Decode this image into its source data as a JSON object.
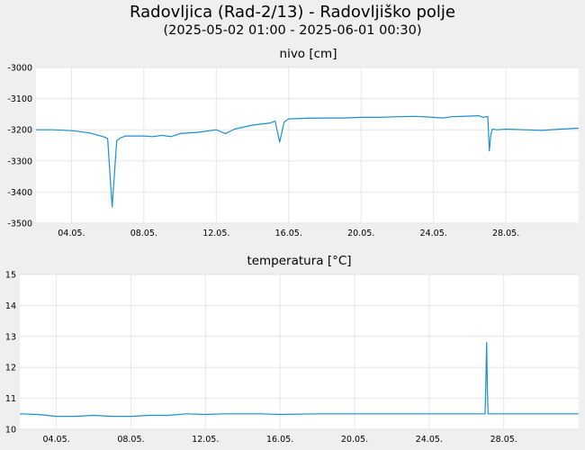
{
  "title": "Radovljica (Rad-2/13) - Radovljiško polje",
  "subtitle": "(2025-05-02 01:00 - 2025-06-01 00:30)",
  "colors": {
    "line": "#1a8fd6",
    "background": "#efefef",
    "plot_background": "#ffffff",
    "grid": "#e6e6e6"
  },
  "chart_data": [
    {
      "type": "line",
      "title": "nivo [cm]",
      "x_range": [
        "2025-05-02 01:00",
        "2025-06-01 00:30"
      ],
      "x_tick_labels": [
        "04.05.",
        "08.05.",
        "12.05.",
        "16.05.",
        "20.05.",
        "24.05.",
        "28.05."
      ],
      "ylim": [
        -3500,
        -3000
      ],
      "y_ticks": [
        -3000,
        -3100,
        -3200,
        -3300,
        -3400,
        -3500
      ],
      "grid": true,
      "series": [
        {
          "x": [
            "2025-05-02 01:00",
            "2025-05-03 00:00",
            "2025-05-04 00:00",
            "2025-05-04 12:00",
            "2025-05-05 00:00",
            "2025-05-05 12:00",
            "2025-05-05 18:00",
            "2025-05-06 00:00",
            "2025-05-06 06:00",
            "2025-05-06 12:00",
            "2025-05-06 18:00",
            "2025-05-07 00:00",
            "2025-05-08 00:00",
            "2025-05-08 12:00",
            "2025-05-09 00:00",
            "2025-05-09 12:00",
            "2025-05-10 00:00",
            "2025-05-11 00:00",
            "2025-05-12 00:00",
            "2025-05-12 12:00",
            "2025-05-13 00:00",
            "2025-05-14 00:00",
            "2025-05-15 00:00",
            "2025-05-15 06:00",
            "2025-05-15 12:00",
            "2025-05-15 18:00",
            "2025-05-16 00:00",
            "2025-05-17 00:00",
            "2025-05-18 00:00",
            "2025-05-19 00:00",
            "2025-05-20 00:00",
            "2025-05-21 00:00",
            "2025-05-22 00:00",
            "2025-05-23 00:00",
            "2025-05-24 00:00",
            "2025-05-24 12:00",
            "2025-05-25 00:00",
            "2025-05-26 00:00",
            "2025-05-26 12:00",
            "2025-05-26 18:00",
            "2025-05-27 00:00",
            "2025-05-27 02:00",
            "2025-05-27 04:00",
            "2025-05-27 06:00",
            "2025-05-27 12:00",
            "2025-05-28 00:00",
            "2025-05-29 00:00",
            "2025-05-30 00:00",
            "2025-05-31 00:00",
            "2025-06-01 00:30"
          ],
          "y": [
            -3200,
            -3200,
            -3203,
            -3206,
            -3210,
            -3218,
            -3222,
            -3228,
            -3448,
            -3235,
            -3225,
            -3220,
            -3220,
            -3222,
            -3218,
            -3222,
            -3212,
            -3208,
            -3200,
            -3212,
            -3198,
            -3185,
            -3178,
            -3172,
            -3240,
            -3175,
            -3165,
            -3163,
            -3162,
            -3162,
            -3160,
            -3160,
            -3158,
            -3157,
            -3160,
            -3162,
            -3158,
            -3156,
            -3155,
            -3160,
            -3157,
            -3268,
            -3215,
            -3198,
            -3200,
            -3198,
            -3200,
            -3202,
            -3198,
            -3195
          ]
        }
      ]
    },
    {
      "type": "line",
      "title": "temperatura [°C]",
      "x_range": [
        "2025-05-02 01:00",
        "2025-06-01 00:30"
      ],
      "x_tick_labels": [
        "04.05.",
        "08.05.",
        "12.05.",
        "16.05.",
        "20.05.",
        "24.05.",
        "28.05."
      ],
      "ylim": [
        10,
        15
      ],
      "y_ticks": [
        15,
        14,
        13,
        12,
        11,
        10
      ],
      "grid": true,
      "series": [
        {
          "x": [
            "2025-05-02 01:00",
            "2025-05-03 00:00",
            "2025-05-03 12:00",
            "2025-05-04 00:00",
            "2025-05-05 00:00",
            "2025-05-06 00:00",
            "2025-05-07 00:00",
            "2025-05-08 00:00",
            "2025-05-09 00:00",
            "2025-05-10 00:00",
            "2025-05-11 00:00",
            "2025-05-12 00:00",
            "2025-05-13 00:00",
            "2025-05-14 00:00",
            "2025-05-15 00:00",
            "2025-05-16 00:00",
            "2025-05-18 00:00",
            "2025-05-20 00:00",
            "2025-05-22 00:00",
            "2025-05-24 00:00",
            "2025-05-26 00:00",
            "2025-05-27 00:00",
            "2025-05-27 01:00",
            "2025-05-27 02:00",
            "2025-05-27 03:00",
            "2025-05-27 04:00",
            "2025-05-27 06:00",
            "2025-05-28 00:00",
            "2025-05-30 00:00",
            "2025-06-01 00:30"
          ],
          "y": [
            10.5,
            10.48,
            10.45,
            10.42,
            10.42,
            10.45,
            10.42,
            10.42,
            10.45,
            10.45,
            10.5,
            10.48,
            10.5,
            10.5,
            10.5,
            10.48,
            10.5,
            10.5,
            10.5,
            10.5,
            10.5,
            10.5,
            11.6,
            12.8,
            11.2,
            10.5,
            10.5,
            10.5,
            10.5,
            10.5
          ]
        }
      ]
    }
  ]
}
